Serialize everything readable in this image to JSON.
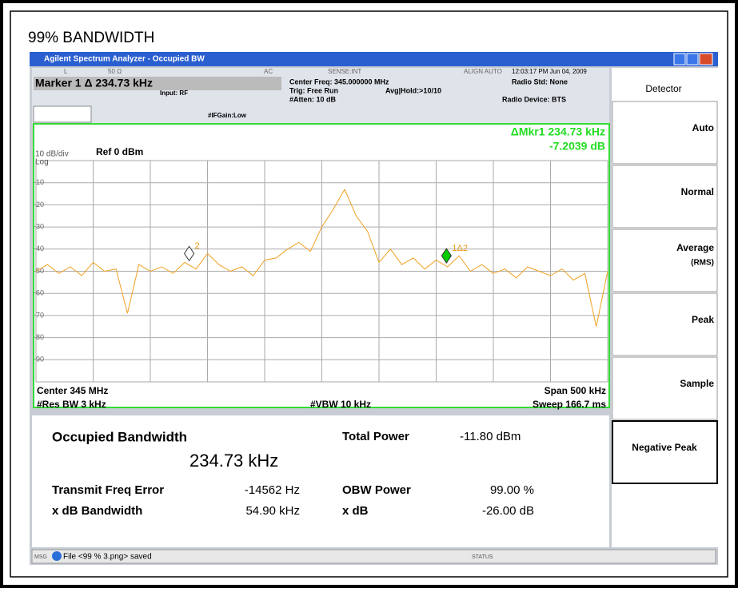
{
  "page_title": "99% BANDWIDTH",
  "window": {
    "title": "Agilent Spectrum Analyzer - Occupied BW",
    "status_row": [
      "L",
      "50 Ω",
      "AC",
      "SENSE:INT",
      "ALIGN AUTO",
      "12:03:17 PM Jun 04, 2009"
    ],
    "marker_readout": "Marker 1 Δ  234.73 kHz",
    "input": "Input: RF",
    "ifgain": "#IFGain:Low",
    "center_freq": "Center Freq: 345.000000 MHz",
    "trig": "Trig: Free Run",
    "avg": "Avg|Hold:>10/10",
    "atten": "#Atten: 10 dB",
    "radio_std": "Radio Std: None",
    "radio_device": "Radio Device: BTS"
  },
  "plot": {
    "scale": "10 dB/div",
    "ref": "Ref  0 dBm",
    "log": "Log",
    "mkr_label": "ΔMkr1  234.73 kHz",
    "mkr_value": "-7.2039 dB",
    "ylim": [
      -100,
      0
    ],
    "yticks": [
      -10,
      -20,
      -30,
      -40,
      -50,
      -60,
      -70,
      -80,
      -90
    ],
    "xlim": [
      344.75,
      345.25
    ],
    "xgrid": [
      344.75,
      344.8,
      344.85,
      344.9,
      344.95,
      345,
      345.05,
      345.1,
      345.15,
      345.2,
      345.25
    ],
    "trace": {
      "color": "#f0a020",
      "x": [
        344.75,
        344.76,
        344.77,
        344.78,
        344.79,
        344.8,
        344.81,
        344.82,
        344.83,
        344.84,
        344.85,
        344.86,
        344.87,
        344.88,
        344.89,
        344.9,
        344.91,
        344.92,
        344.93,
        344.94,
        344.95,
        344.96,
        344.97,
        344.98,
        344.99,
        345,
        345.01,
        345.02,
        345.03,
        345.04,
        345.05,
        345.06,
        345.07,
        345.08,
        345.09,
        345.1,
        345.11,
        345.12,
        345.13,
        345.14,
        345.15,
        345.16,
        345.17,
        345.18,
        345.19,
        345.2,
        345.21,
        345.22,
        345.23,
        345.24,
        345.25
      ],
      "values": [
        -50,
        -47,
        -51,
        -48,
        -52,
        -46,
        -50,
        -49,
        -69,
        -47,
        -50,
        -48,
        -51,
        -46,
        -49,
        -42,
        -47,
        -50,
        -48,
        -52,
        -45,
        -44,
        -40,
        -37,
        -41,
        -30,
        -22,
        -13,
        -25,
        -32,
        -46,
        -40,
        -47,
        -44,
        -49,
        -45,
        -48,
        -43,
        -50,
        -47,
        -51,
        -49,
        -53,
        -48,
        -50,
        -52,
        -49,
        -54,
        -51,
        -75,
        -50
      ]
    },
    "markers": [
      {
        "label": "2",
        "x": 344.884,
        "y": -42,
        "color": "#ffffff"
      },
      {
        "label": "1Δ2",
        "x": 345.109,
        "y": -43,
        "color": "#00cc00"
      }
    ],
    "center": "Center  345 MHz",
    "span": "Span  500 kHz",
    "res_bw": "#Res BW  3 kHz",
    "vbw": "#VBW  10 kHz",
    "sweep": "Sweep  166.7 ms"
  },
  "results": {
    "title": "Occupied Bandwidth",
    "value": "234.73 kHz",
    "total_power_label": "Total Power",
    "total_power": "-11.80 dBm",
    "rows": [
      [
        "Transmit Freq Error",
        "-14562 Hz",
        "OBW Power",
        "99.00 %"
      ],
      [
        "x dB Bandwidth",
        "54.90 kHz",
        "x dB",
        "-26.00 dB"
      ]
    ]
  },
  "softkeys": {
    "title": "Detector",
    "keys": [
      {
        "label": "Auto"
      },
      {
        "label": "Normal"
      },
      {
        "label": "Average",
        "sub": "(RMS)"
      },
      {
        "label": "Peak"
      },
      {
        "label": "Sample"
      },
      {
        "label": "Negative Peak"
      }
    ]
  },
  "status_bar": {
    "msg": "MSG",
    "text": "File <99 % 3.png> saved",
    "status": "STATUS"
  }
}
